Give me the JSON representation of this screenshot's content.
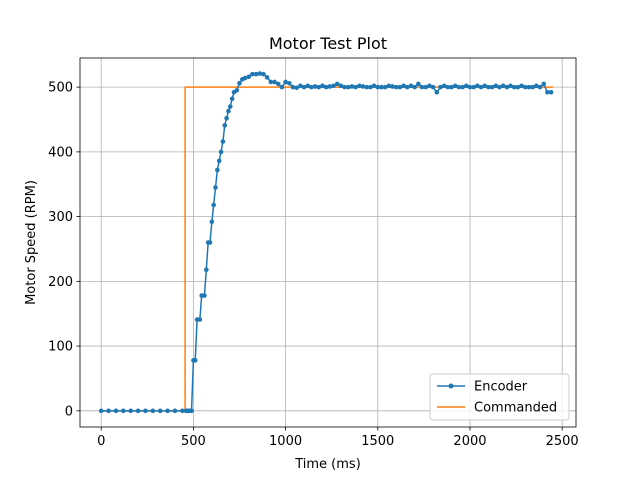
{
  "chart_data": {
    "type": "line",
    "title": "Motor Test Plot",
    "xlabel": "Time (ms)",
    "ylabel": "Motor Speed (RPM)",
    "xlim": [
      -115,
      2575
    ],
    "ylim": [
      -25,
      545
    ],
    "xticks": [
      0,
      500,
      1000,
      1500,
      2000,
      2500
    ],
    "yticks": [
      0,
      100,
      200,
      300,
      400,
      500
    ],
    "grid": true,
    "legend_position": "lower right",
    "series": [
      {
        "name": "Encoder",
        "color": "#1f77b4",
        "marker": "circle",
        "x": [
          0,
          40,
          80,
          120,
          160,
          200,
          240,
          280,
          320,
          360,
          400,
          440,
          460,
          470,
          480,
          490,
          500,
          510,
          520,
          535,
          545,
          560,
          570,
          580,
          590,
          600,
          610,
          620,
          630,
          640,
          650,
          660,
          670,
          680,
          690,
          700,
          710,
          720,
          735,
          750,
          765,
          780,
          800,
          820,
          840,
          860,
          880,
          900,
          920,
          940,
          960,
          980,
          1000,
          1020,
          1040,
          1060,
          1080,
          1100,
          1120,
          1140,
          1160,
          1180,
          1200,
          1220,
          1240,
          1260,
          1280,
          1300,
          1320,
          1340,
          1360,
          1380,
          1400,
          1420,
          1440,
          1460,
          1480,
          1500,
          1520,
          1540,
          1560,
          1580,
          1600,
          1620,
          1640,
          1660,
          1680,
          1700,
          1720,
          1740,
          1760,
          1780,
          1800,
          1820,
          1840,
          1860,
          1880,
          1900,
          1920,
          1940,
          1960,
          1980,
          2000,
          2020,
          2040,
          2060,
          2080,
          2100,
          2120,
          2140,
          2160,
          2180,
          2200,
          2220,
          2240,
          2260,
          2280,
          2300,
          2320,
          2340,
          2360,
          2380,
          2400,
          2420,
          2440
        ],
        "y": [
          0,
          0,
          0,
          0,
          0,
          0,
          0,
          0,
          0,
          0,
          0,
          0,
          0,
          0,
          0,
          0,
          78,
          78,
          141,
          141,
          178,
          178,
          218,
          260,
          260,
          292,
          318,
          345,
          372,
          386,
          400,
          416,
          441,
          452,
          463,
          470,
          482,
          492,
          495,
          506,
          512,
          514,
          516,
          520,
          520,
          521,
          520,
          515,
          508,
          508,
          505,
          500,
          508,
          506,
          500,
          499,
          502,
          500,
          502,
          500,
          501,
          500,
          502,
          500,
          501,
          502,
          505,
          502,
          500,
          500,
          501,
          500,
          502,
          501,
          500,
          500,
          502,
          500,
          500,
          500,
          502,
          501,
          500,
          500,
          502,
          500,
          502,
          500,
          505,
          500,
          500,
          502,
          500,
          492,
          500,
          502,
          500,
          500,
          502,
          500,
          500,
          502,
          500,
          500,
          502,
          500,
          502,
          500,
          500,
          502,
          500,
          502,
          500,
          502,
          500,
          500,
          502,
          500,
          500,
          500,
          502,
          500,
          505,
          492,
          492
        ]
      },
      {
        "name": "Commanded",
        "color": "#ff7f0e",
        "marker": "none",
        "x": [
          0,
          455,
          455,
          2450
        ],
        "y": [
          0,
          0,
          500,
          500
        ]
      }
    ]
  }
}
